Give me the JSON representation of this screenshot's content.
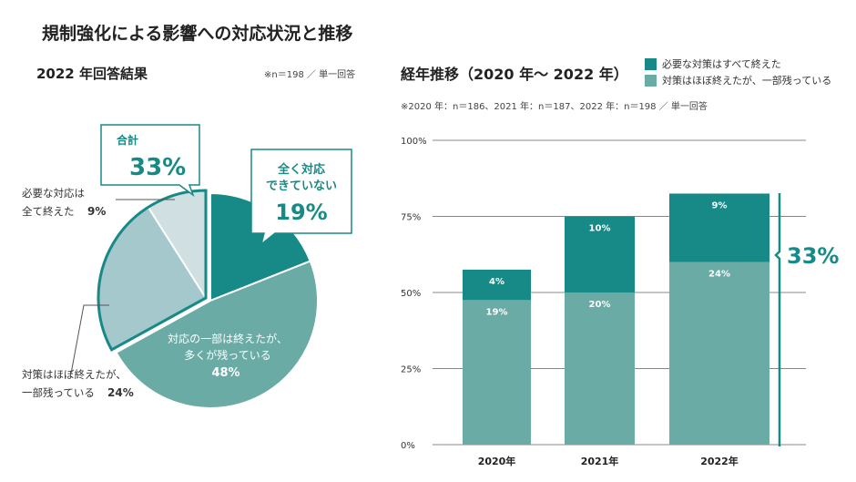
{
  "title": "規制強化による影響への対応状況と推移",
  "colors": {
    "dark": "#178a87",
    "mid": "#6aaba5",
    "light": "#a4c8cb",
    "lightest": "#cfdfe2",
    "accent": "#178a87"
  },
  "chart_data": [
    {
      "type": "pie",
      "title": "2022 年回答結果",
      "note": "※n＝198 ／ 単一回答",
      "slices": [
        {
          "label": "全く対応できていない",
          "value": 19
        },
        {
          "label": "対応の一部は終えたが、多くが残っている",
          "value": 48
        },
        {
          "label": "対策はほぼ終えたが、一部残っている",
          "value": 24
        },
        {
          "label": "必要な対応は全て終えた",
          "value": 9
        }
      ],
      "labels": {
        "s0a": "全く対応",
        "s0b": "できていない",
        "s0v": "19%",
        "s1a": "対応の一部は終えたが、",
        "s1b": "多くが残っている",
        "s1v": "48%",
        "s2a": "対策はほぼ終えたが、",
        "s2b": "一部残っている",
        "s2v": "24%",
        "s3a": "必要な対応は",
        "s3b": "全て終えた",
        "s3v": "9%"
      },
      "callout": {
        "label": "合計",
        "value": "33%"
      }
    },
    {
      "type": "bar",
      "stacked": true,
      "title": "経年推移（2020 年～ 2022 年）",
      "note": "※2020 年：n＝186、2021 年：n＝187、2022 年：n＝198 ／ 単一回答",
      "categories": [
        "2020年",
        "2021年",
        "2022年"
      ],
      "series": [
        {
          "name": "対策はほぼ終えたが、一部残っている",
          "values": [
            19,
            20,
            24
          ],
          "labels": [
            "19%",
            "20%",
            "24%"
          ]
        },
        {
          "name": "必要な対策はすべて終えた",
          "values": [
            4,
            10,
            9
          ],
          "labels": [
            "4%",
            "10%",
            "9%"
          ]
        }
      ],
      "yticks": [
        "0%",
        "25%",
        "50%",
        "75%",
        "100%"
      ],
      "legend": "top-right",
      "grid": true,
      "annotation": "33%"
    }
  ]
}
